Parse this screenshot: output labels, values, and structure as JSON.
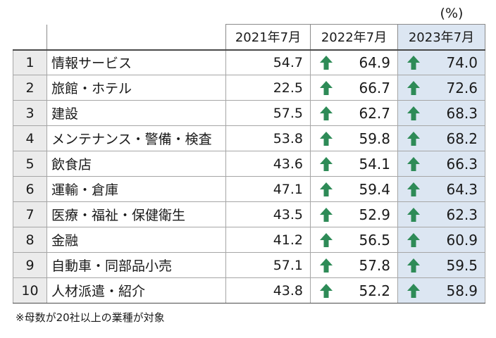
{
  "unit_label": "(%)",
  "columns": {
    "y2021": "2021年7月",
    "y2022": "2022年7月",
    "y2023": "2023年7月"
  },
  "colors": {
    "arrow": "#2e8b57",
    "highlight_column": "#dce6f2",
    "rank_background": "#ebebeb"
  },
  "arrow_icon": "up-arrow-icon",
  "rows": [
    {
      "rank": "1",
      "industry": "情報サービス",
      "y2021": "54.7",
      "y2022": "64.9",
      "y2023": "74.0"
    },
    {
      "rank": "2",
      "industry": "旅館・ホテル",
      "y2021": "22.5",
      "y2022": "66.7",
      "y2023": "72.6"
    },
    {
      "rank": "3",
      "industry": "建設",
      "y2021": "57.5",
      "y2022": "62.7",
      "y2023": "68.3"
    },
    {
      "rank": "4",
      "industry": "メンテナンス・警備・検査",
      "y2021": "53.8",
      "y2022": "59.8",
      "y2023": "68.2"
    },
    {
      "rank": "5",
      "industry": "飲食店",
      "y2021": "43.6",
      "y2022": "54.1",
      "y2023": "66.3"
    },
    {
      "rank": "6",
      "industry": "運輸・倉庫",
      "y2021": "47.1",
      "y2022": "59.4",
      "y2023": "64.3"
    },
    {
      "rank": "7",
      "industry": "医療・福祉・保健衛生",
      "y2021": "43.5",
      "y2022": "52.9",
      "y2023": "62.3"
    },
    {
      "rank": "8",
      "industry": "金融",
      "y2021": "41.2",
      "y2022": "56.5",
      "y2023": "60.9"
    },
    {
      "rank": "9",
      "industry": "自動車・同部品小売",
      "y2021": "57.1",
      "y2022": "57.8",
      "y2023": "59.5"
    },
    {
      "rank": "10",
      "industry": "人材派遣・紹介",
      "y2021": "43.8",
      "y2022": "52.2",
      "y2023": "58.9"
    }
  ],
  "footnote": "※母数が20社以上の業種が対象"
}
